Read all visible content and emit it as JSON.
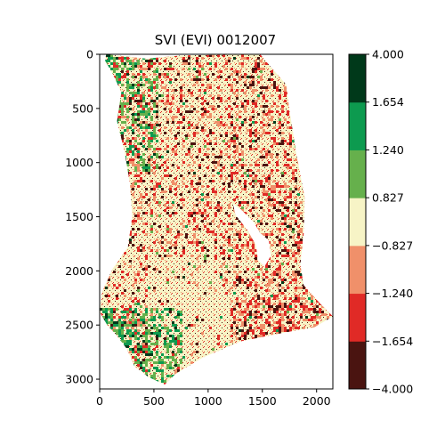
{
  "chart_data": {
    "type": "heatmap",
    "title": "SVI (EVI) 0012007",
    "xlabel": "",
    "ylabel": "",
    "xlim": [
      0,
      2150
    ],
    "ylim": [
      3090,
      0
    ],
    "xticks": [
      0,
      500,
      1000,
      1500,
      2000
    ],
    "yticks": [
      0,
      500,
      1000,
      1500,
      2000,
      2500,
      3000
    ],
    "grid": false,
    "colorbar": {
      "ticks": [
        "4.000",
        "1.654",
        "1.240",
        "0.827",
        "−0.827",
        "−1.240",
        "−1.654",
        "−4.000"
      ],
      "bins": [
        {
          "from": -4.0,
          "to": -1.654,
          "color": "#4a1410"
        },
        {
          "from": -1.654,
          "to": -1.24,
          "color": "#e02a26"
        },
        {
          "from": -1.24,
          "to": -0.827,
          "color": "#f0906a"
        },
        {
          "from": -0.827,
          "to": 0.827,
          "color": "#f7f4c6"
        },
        {
          "from": 0.827,
          "to": 1.24,
          "color": "#66b04c"
        },
        {
          "from": 1.24,
          "to": 1.654,
          "color": "#0d9a4f"
        },
        {
          "from": 1.654,
          "to": 4.0,
          "color": "#00391a"
        }
      ]
    },
    "region_outline": [
      [
        60,
        0
      ],
      [
        430,
        40
      ],
      [
        760,
        10
      ],
      [
        1480,
        0
      ],
      [
        1580,
        120
      ],
      [
        1720,
        280
      ],
      [
        1750,
        520
      ],
      [
        1810,
        900
      ],
      [
        1890,
        1320
      ],
      [
        1880,
        1680
      ],
      [
        1850,
        1940
      ],
      [
        1880,
        2130
      ],
      [
        2030,
        2300
      ],
      [
        2150,
        2420
      ],
      [
        1980,
        2520
      ],
      [
        1700,
        2570
      ],
      [
        1300,
        2650
      ],
      [
        950,
        2800
      ],
      [
        700,
        2950
      ],
      [
        600,
        3050
      ],
      [
        450,
        2980
      ],
      [
        320,
        2880
      ],
      [
        250,
        2720
      ],
      [
        160,
        2600
      ],
      [
        70,
        2500
      ],
      [
        0,
        2380
      ],
      [
        20,
        2200
      ],
      [
        120,
        1980
      ],
      [
        260,
        1780
      ],
      [
        300,
        1500
      ],
      [
        280,
        1200
      ],
      [
        230,
        900
      ],
      [
        160,
        620
      ],
      [
        200,
        350
      ],
      [
        120,
        180
      ],
      [
        50,
        60
      ]
    ]
  }
}
